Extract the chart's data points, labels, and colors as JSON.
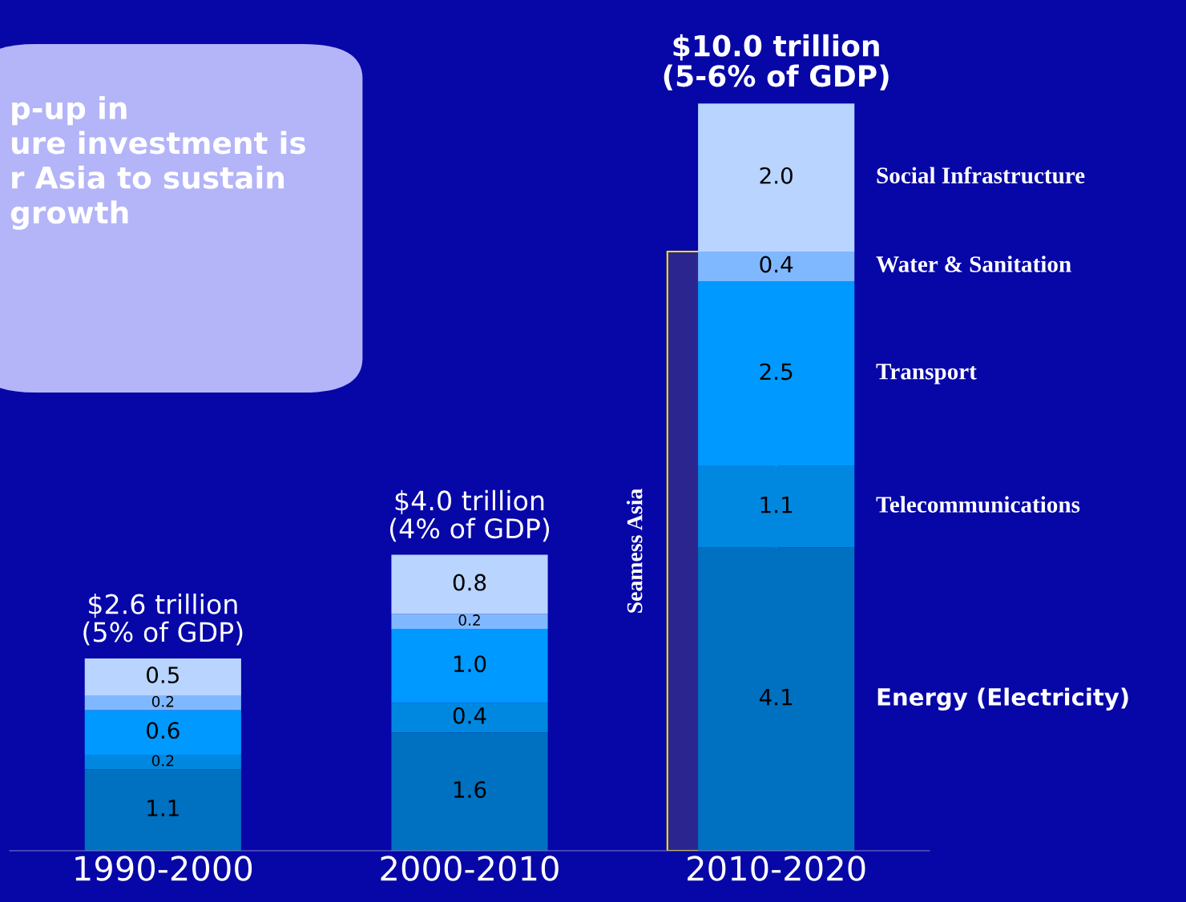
{
  "chart_data": {
    "type": "bar",
    "stacked": true,
    "categories": [
      "1990-2000",
      "2000-2010",
      "2010-2020"
    ],
    "series": [
      {
        "name": "Energy (Electricity)",
        "color": "#0070c0",
        "values": [
          1.1,
          1.6,
          4.1
        ],
        "value_labels": [
          "1.1",
          "1.6",
          "4.1"
        ]
      },
      {
        "name": "Telecommunications",
        "color": "#0088e0",
        "values": [
          0.2,
          0.4,
          1.1
        ],
        "value_labels": [
          "0.2",
          "0.4",
          "1.1"
        ]
      },
      {
        "name": "Transport",
        "color": "#0099ff",
        "values": [
          0.6,
          1.0,
          2.5
        ],
        "value_labels": [
          "0.6",
          "1.0",
          "2.5"
        ]
      },
      {
        "name": "Water & Sanitation",
        "color": "#80b8ff",
        "values": [
          0.2,
          0.2,
          0.4
        ],
        "value_labels": [
          "0.2",
          "0.2",
          "0.4"
        ]
      },
      {
        "name": "Social Infrastructure",
        "color": "#b8d4ff",
        "values": [
          0.5,
          0.8,
          2.0
        ],
        "value_labels": [
          "0.5",
          "0.8",
          "2.0"
        ]
      }
    ],
    "totals": [
      "$2.6 trillion\n(5% of GDP)",
      "$4.0 trillion\n(4% of GDP)",
      "$10.0 trillion\n(5-6% of GDP)"
    ],
    "ylim": [
      0,
      11.5
    ],
    "bands": [
      {
        "axis": "y",
        "from": 0,
        "to": 8.1,
        "label": "Seamess Asia",
        "color": "#ffe000"
      }
    ],
    "annotations": [
      "p-up in\nure investment is\nr Asia to sustain\ngrowth"
    ]
  }
}
